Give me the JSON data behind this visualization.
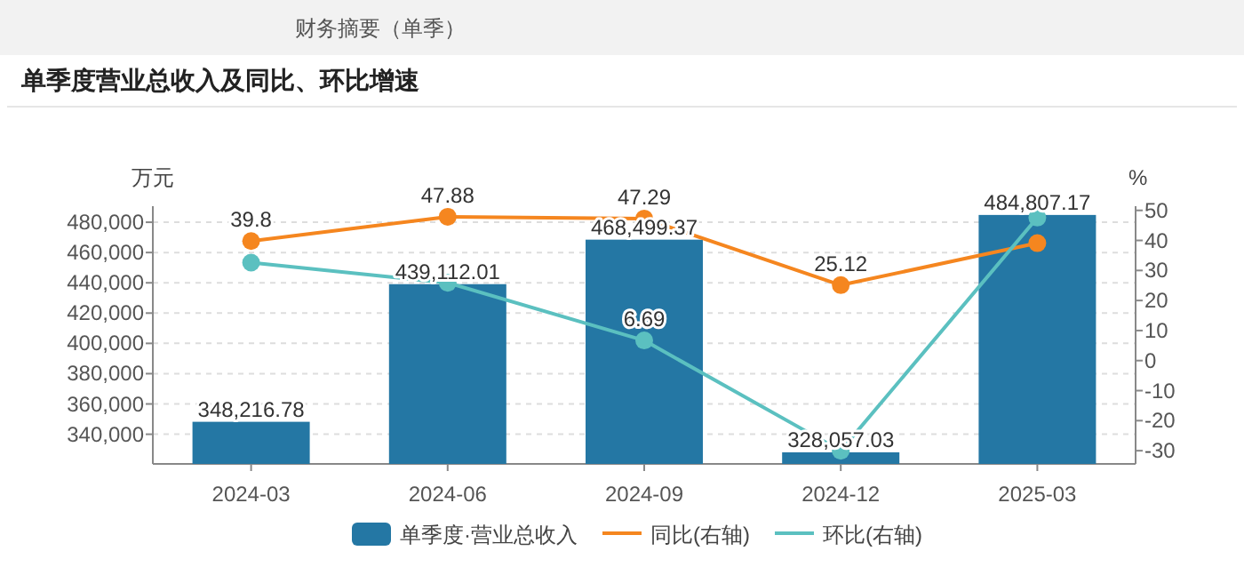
{
  "chart_data": {
    "type": "bar",
    "title": "单季度营业总收入及同比、环比增速",
    "annotations": [
      "财务摘要（单季）"
    ],
    "ylabel": "万元",
    "y2label": "%",
    "categories": [
      "2024-03",
      "2024-06",
      "2024-09",
      "2024-12",
      "2025-03"
    ],
    "series": [
      {
        "name": "单季度·营业总收入",
        "color": "#2477a4",
        "values": [
          348216.78,
          439112.01,
          468499.37,
          328057.03,
          484807.17
        ],
        "value_labels": [
          "348,216.78",
          "439,112.01",
          "468,499.37",
          "328,057.03",
          "484,807.17"
        ]
      },
      {
        "name": "同比(右轴)",
        "type": "line",
        "axis": "y2",
        "color": "#f5861f",
        "values": [
          39.8,
          47.88,
          47.29,
          25.12,
          39.1
        ],
        "value_labels": [
          "39.8",
          "47.88",
          "47.29",
          "25.12",
          null
        ]
      },
      {
        "name": "环比(右轴)",
        "type": "line",
        "axis": "y2",
        "color": "#5bc0c0",
        "values": [
          32.6,
          25.9,
          6.69,
          -30,
          47.6
        ],
        "value_labels": [
          null,
          null,
          "6.69",
          null,
          null
        ]
      }
    ],
    "ylim": [
      320400,
      490600
    ],
    "yticks": [
      {
        "value": 340000,
        "label": "340,000"
      },
      {
        "value": 360000,
        "label": "360,000"
      },
      {
        "value": 380000,
        "label": "380,000"
      },
      {
        "value": 400000,
        "label": "400,000"
      },
      {
        "value": 420000,
        "label": "420,000"
      },
      {
        "value": 440000,
        "label": "440,000"
      },
      {
        "value": 460000,
        "label": "460,000"
      },
      {
        "value": 480000,
        "label": "480,000"
      }
    ],
    "y2lim": [
      -34.4,
      51.4
    ],
    "y2ticks": [
      -30,
      -20,
      -10,
      0,
      10,
      20,
      30,
      40,
      50
    ],
    "grid": "y",
    "legend": "bottom",
    "marker": "circle"
  }
}
